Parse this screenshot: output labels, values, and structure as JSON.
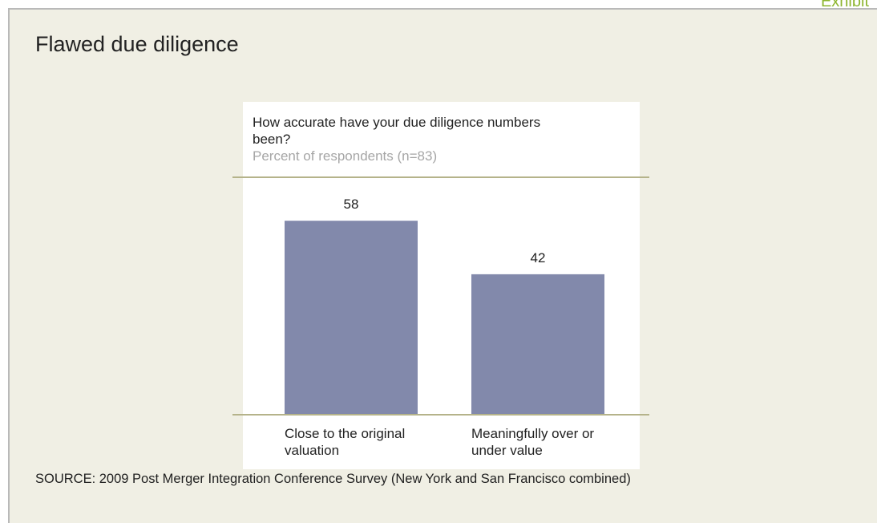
{
  "chart_data": {
    "type": "bar",
    "exhibit": "Exhibit",
    "title": "Flawed due diligence",
    "question": "How accurate have your due diligence numbers been?",
    "subtitle": "Percent of respondents (n=83)",
    "categories": [
      "Close to the original valuation",
      "Meaningfully over or under value"
    ],
    "values": [
      58,
      42
    ],
    "color": "#8289ab",
    "ylim": [
      0,
      71
    ],
    "source": "SOURCE: 2009 Post Merger Integration Conference Survey (New York and San Francisco combined)"
  }
}
